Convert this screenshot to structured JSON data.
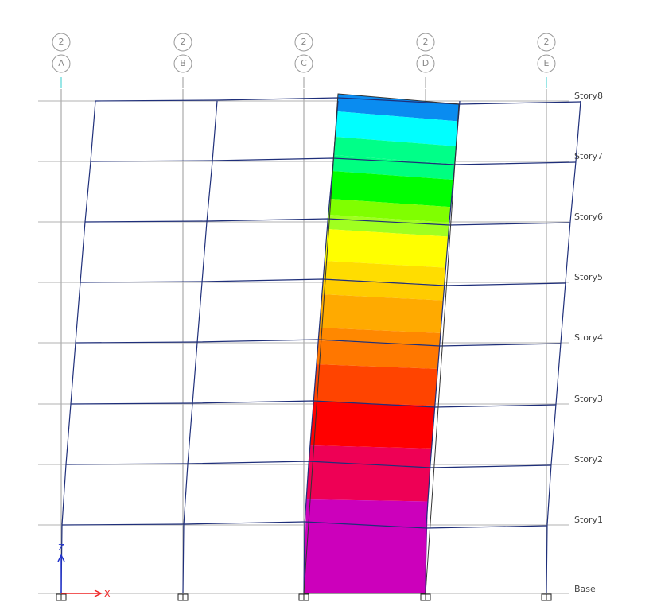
{
  "grid_lines": [
    {
      "bubble": "2",
      "label": "A"
    },
    {
      "bubble": "2",
      "label": "B"
    },
    {
      "bubble": "2",
      "label": "C"
    },
    {
      "bubble": "2",
      "label": "D"
    },
    {
      "bubble": "2",
      "label": "E"
    }
  ],
  "stories": [
    "Story8",
    "Story7",
    "Story6",
    "Story5",
    "Story4",
    "Story3",
    "Story2",
    "Story1",
    "Base"
  ],
  "axes": {
    "z": "Z",
    "x": "X"
  }
}
